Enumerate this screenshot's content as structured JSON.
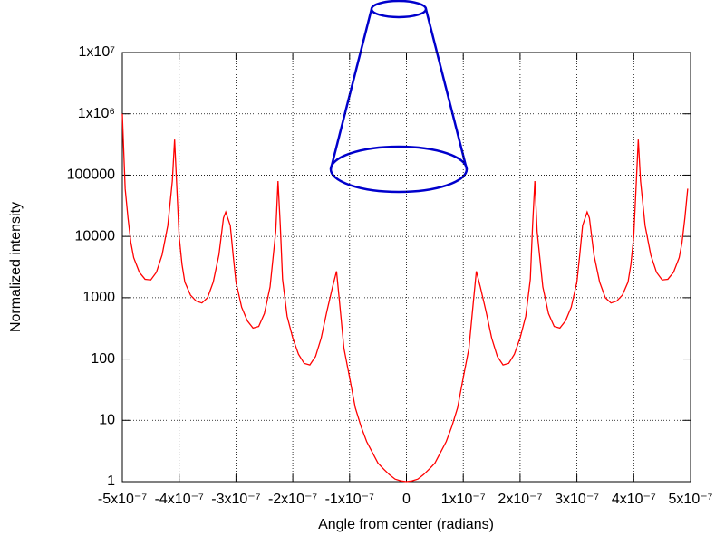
{
  "chart_data": {
    "type": "line",
    "x_label": "Angle from center (radians)",
    "y_label": "Normalized intensity",
    "log_y": true,
    "grid": true,
    "xlim": [
      -5e-07,
      5e-07
    ],
    "ylim": [
      1,
      10000000
    ],
    "xticks": [
      {
        "value": -5e-07,
        "label": "-5x10⁻⁷"
      },
      {
        "value": -4e-07,
        "label": "-4x10⁻⁷"
      },
      {
        "value": -3e-07,
        "label": "-3x10⁻⁷"
      },
      {
        "value": -2e-07,
        "label": "-2x10⁻⁷"
      },
      {
        "value": -1e-07,
        "label": "-1x10⁻⁷"
      },
      0,
      {
        "value": 1e-07,
        "label": "1x10⁻⁷"
      },
      {
        "value": 2e-07,
        "label": "2x10⁻⁷"
      },
      {
        "value": 3e-07,
        "label": "3x10⁻⁷"
      },
      {
        "value": 4e-07,
        "label": "4x10⁻⁷"
      },
      {
        "value": 5e-07,
        "label": "5x10⁻⁷"
      }
    ],
    "yticks": [
      1,
      10,
      100,
      1000,
      10000,
      100000,
      {
        "value": 1000000,
        "label": "1x10⁶"
      },
      {
        "value": 10000000,
        "label": "1x10⁷"
      }
    ],
    "x": [
      -5e-07,
      -4.95e-07,
      -4.9e-07,
      -4.85e-07,
      -4.8e-07,
      -4.7e-07,
      -4.6e-07,
      -4.5e-07,
      -4.4e-07,
      -4.3e-07,
      -4.2e-07,
      -4.12e-07,
      -4.08e-07,
      -4.04e-07,
      -4e-07,
      -3.95e-07,
      -3.9e-07,
      -3.8e-07,
      -3.7e-07,
      -3.6e-07,
      -3.5e-07,
      -3.4e-07,
      -3.3e-07,
      -3.22e-07,
      -3.18e-07,
      -3.1e-07,
      -3.05e-07,
      -3e-07,
      -2.9e-07,
      -2.8e-07,
      -2.7e-07,
      -2.6e-07,
      -2.5e-07,
      -2.4e-07,
      -2.3e-07,
      -2.26e-07,
      -2.22e-07,
      -2.18e-07,
      -2.1e-07,
      -2e-07,
      -1.9e-07,
      -1.8e-07,
      -1.7e-07,
      -1.6e-07,
      -1.5e-07,
      -1.4e-07,
      -1.3e-07,
      -1.23e-07,
      -1.18e-07,
      -1.1e-07,
      -1e-07,
      -9e-08,
      -8e-08,
      -7e-08,
      -6e-08,
      -5e-08,
      -4e-08,
      -3e-08,
      -2e-08,
      -1e-08,
      0,
      1e-08,
      2e-08,
      3e-08,
      4e-08,
      5e-08,
      6e-08,
      7e-08,
      8e-08,
      9e-08,
      1e-07,
      1.1e-07,
      1.18e-07,
      1.23e-07,
      1.3e-07,
      1.4e-07,
      1.5e-07,
      1.6e-07,
      1.7e-07,
      1.8e-07,
      1.9e-07,
      2e-07,
      2.1e-07,
      2.18e-07,
      2.22e-07,
      2.26e-07,
      2.3e-07,
      2.4e-07,
      2.5e-07,
      2.6e-07,
      2.7e-07,
      2.8e-07,
      2.9e-07,
      3e-07,
      3.05e-07,
      3.1e-07,
      3.18e-07,
      3.22e-07,
      3.3e-07,
      3.4e-07,
      3.5e-07,
      3.6e-07,
      3.7e-07,
      3.8e-07,
      3.9e-07,
      3.95e-07,
      4e-07,
      4.04e-07,
      4.08e-07,
      4.12e-07,
      4.2e-07,
      4.3e-07,
      4.4e-07,
      4.5e-07,
      4.6e-07,
      4.7e-07,
      4.8e-07,
      4.85e-07,
      4.9e-07,
      4.95e-07
    ],
    "series": [
      {
        "color": "#ff0000",
        "values": [
          1000000,
          60000,
          20000,
          8000,
          4500,
          2600,
          2000,
          1950,
          2600,
          5000,
          15000,
          80000,
          380000,
          60000,
          10000,
          3500,
          1800,
          1100,
          880,
          820,
          1000,
          1800,
          5000,
          20000,
          25000,
          15000,
          5000,
          1800,
          700,
          420,
          320,
          340,
          550,
          1500,
          12000,
          80000,
          15000,
          2000,
          500,
          220,
          120,
          85,
          80,
          110,
          220,
          600,
          1500,
          2700,
          900,
          150,
          50,
          16,
          8,
          4.5,
          3,
          2,
          1.6,
          1.3,
          1.1,
          1.03,
          1,
          1.03,
          1.1,
          1.3,
          1.6,
          2,
          3,
          4.5,
          8,
          16,
          50,
          150,
          900,
          2700,
          1500,
          600,
          220,
          110,
          80,
          85,
          120,
          220,
          500,
          2000,
          15000,
          80000,
          12000,
          1500,
          550,
          340,
          320,
          420,
          700,
          1800,
          5000,
          15000,
          25000,
          20000,
          5000,
          1800,
          1000,
          820,
          880,
          1100,
          1800,
          3500,
          10000,
          60000,
          380000,
          80000,
          15000,
          5000,
          2600,
          1950,
          2000,
          2600,
          4500,
          8000,
          20000,
          60000
        ]
      }
    ]
  }
}
